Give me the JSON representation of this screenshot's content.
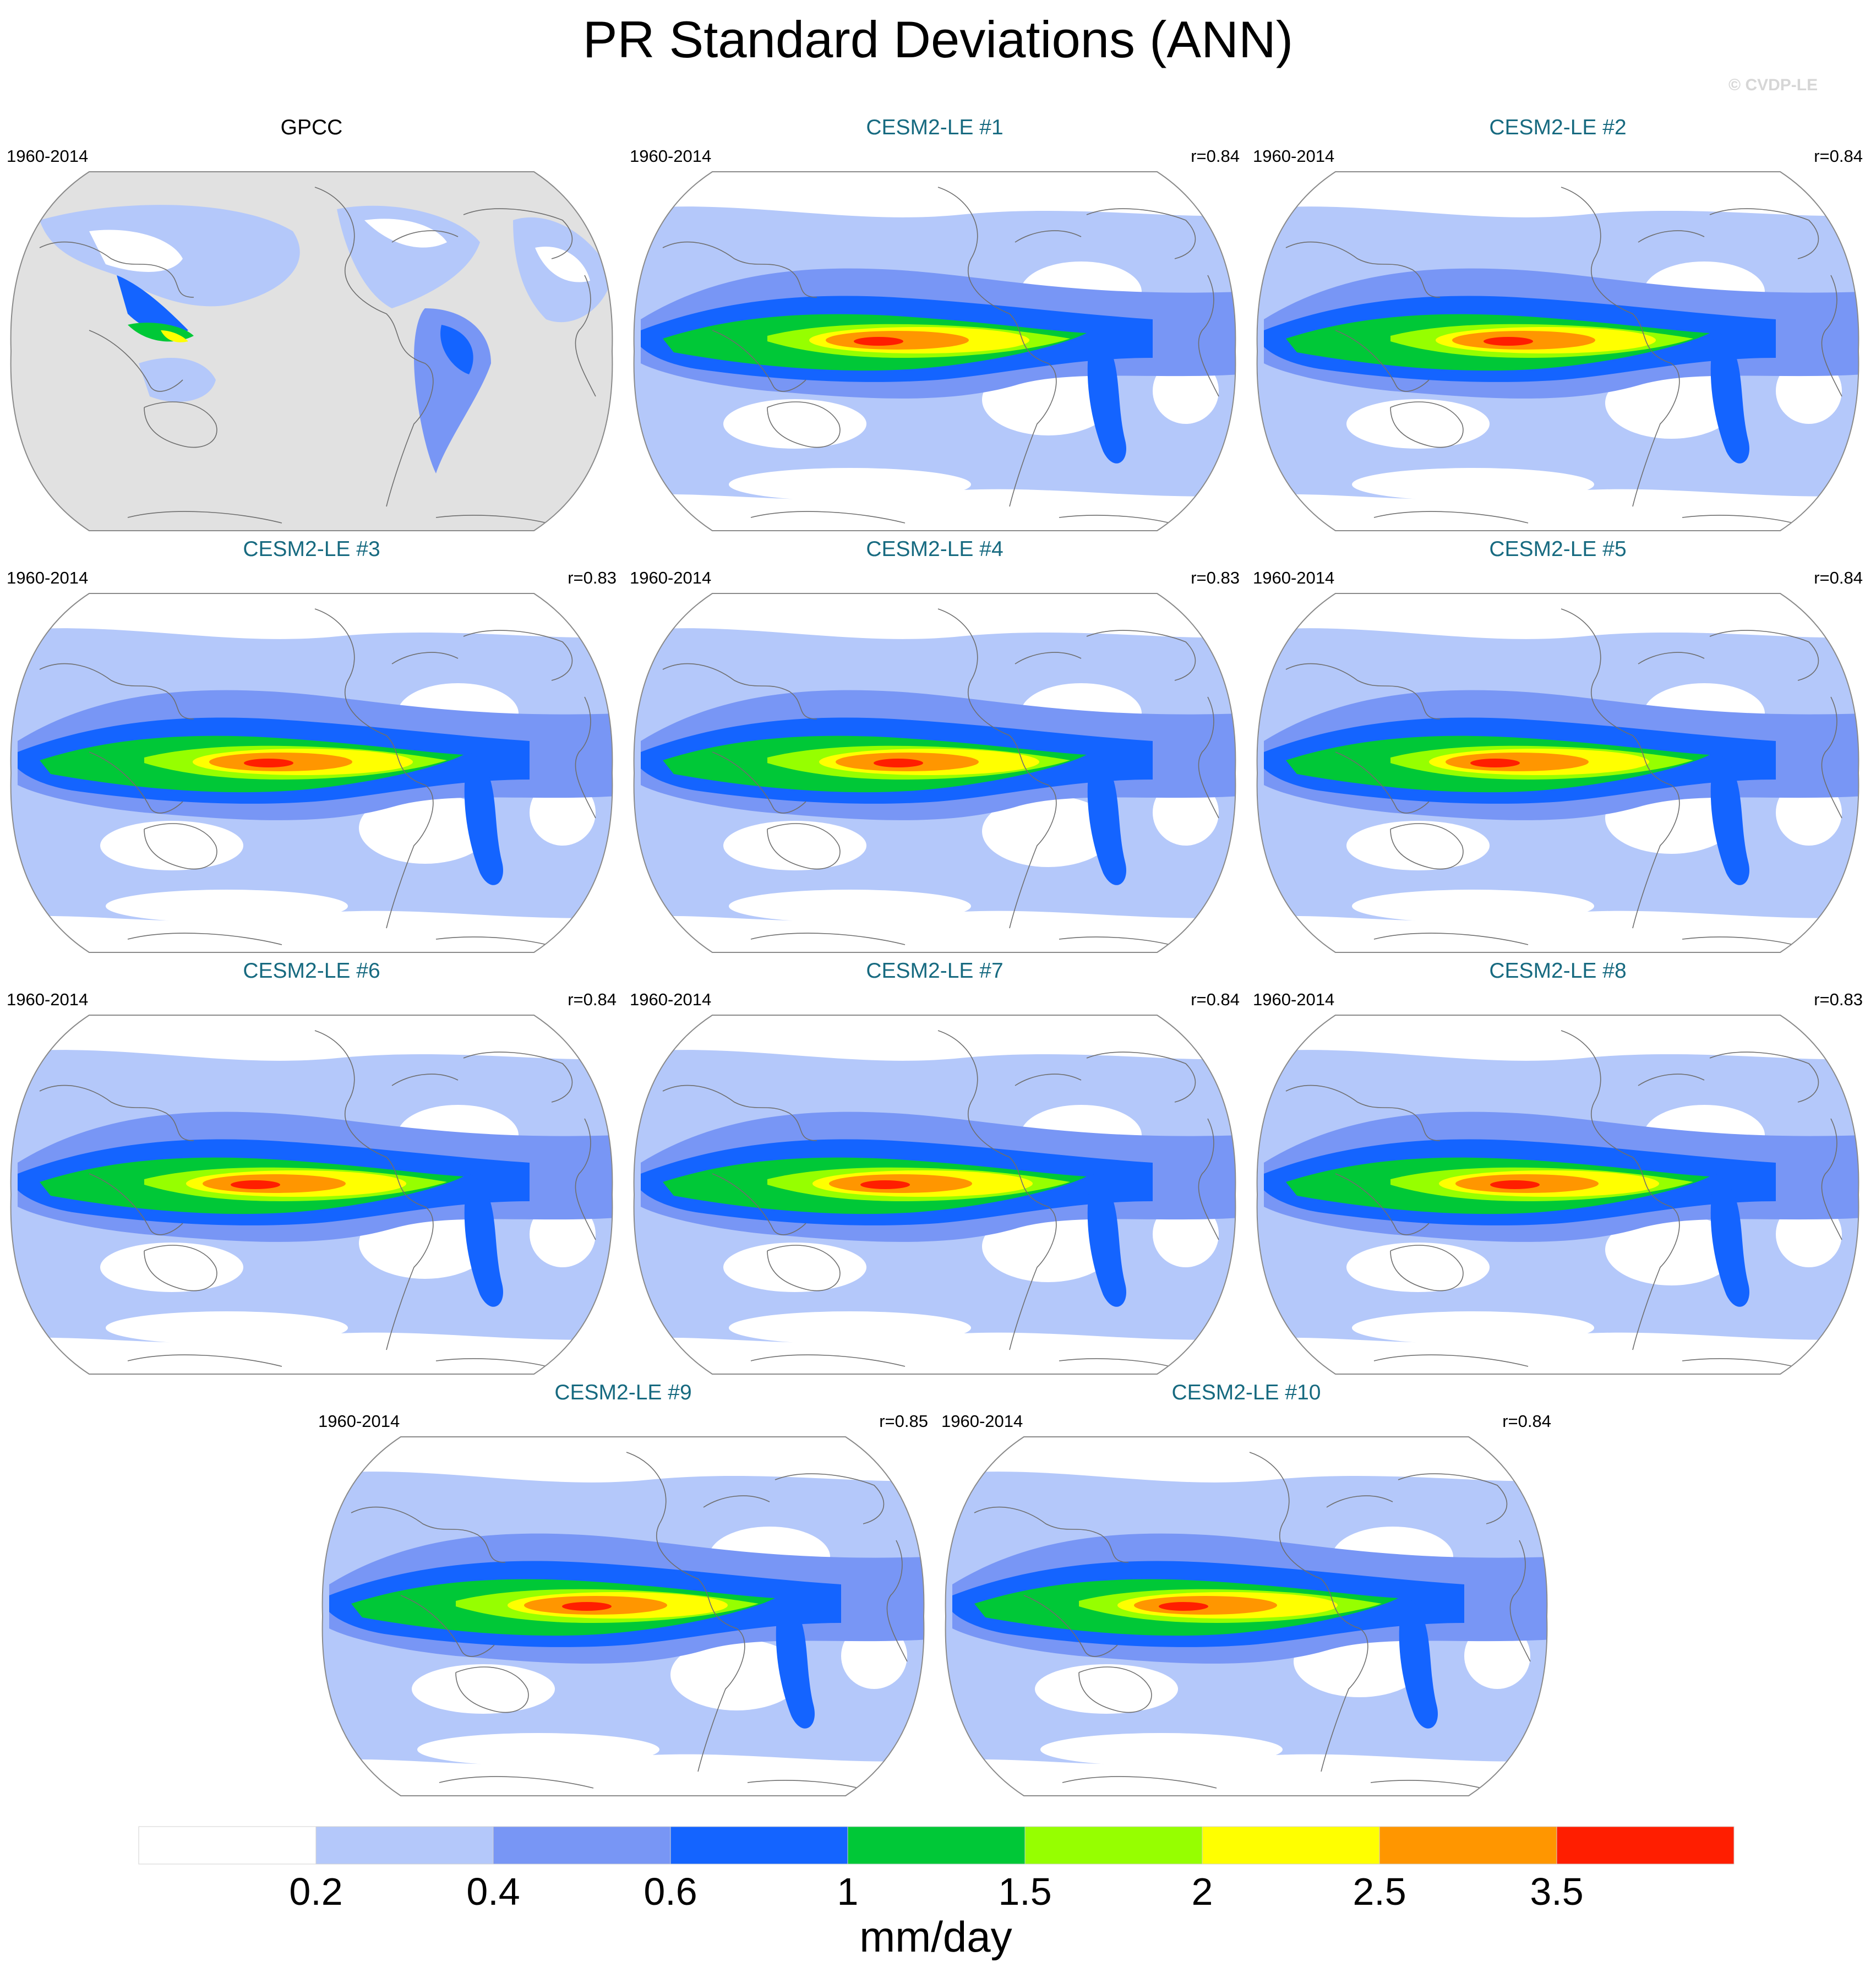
{
  "title": "PR Standard Deviations (ANN)",
  "watermark": "© CVDP-LE",
  "panels": [
    {
      "title": "GPCC",
      "period": "1960-2014",
      "r": "",
      "kind": "obs"
    },
    {
      "title": "CESM2-LE #1",
      "period": "1960-2014",
      "r": "r=0.84",
      "kind": "model"
    },
    {
      "title": "CESM2-LE #2",
      "period": "1960-2014",
      "r": "r=0.84",
      "kind": "model"
    },
    {
      "title": "CESM2-LE #3",
      "period": "1960-2014",
      "r": "r=0.83",
      "kind": "model"
    },
    {
      "title": "CESM2-LE #4",
      "period": "1960-2014",
      "r": "r=0.83",
      "kind": "model"
    },
    {
      "title": "CESM2-LE #5",
      "period": "1960-2014",
      "r": "r=0.84",
      "kind": "model"
    },
    {
      "title": "CESM2-LE #6",
      "period": "1960-2014",
      "r": "r=0.84",
      "kind": "model"
    },
    {
      "title": "CESM2-LE #7",
      "period": "1960-2014",
      "r": "r=0.84",
      "kind": "model"
    },
    {
      "title": "CESM2-LE #8",
      "period": "1960-2014",
      "r": "r=0.83",
      "kind": "model"
    },
    {
      "title": "CESM2-LE #9",
      "period": "1960-2014",
      "r": "r=0.85",
      "kind": "model"
    },
    {
      "title": "CESM2-LE #10",
      "period": "1960-2014",
      "r": "r=0.84",
      "kind": "model"
    }
  ],
  "colorbar": {
    "labels": [
      "0.2",
      "0.4",
      "0.6",
      "1",
      "1.5",
      "2",
      "2.5",
      "3.5"
    ],
    "units": "mm/day",
    "colors": [
      "#ffffff",
      "#b4c8fa",
      "#7896f5",
      "#1464ff",
      "#00c837",
      "#96ff00",
      "#ffff00",
      "#ff9600",
      "#ff1e00"
    ]
  },
  "land_mask_color": "#e1e1e1"
}
